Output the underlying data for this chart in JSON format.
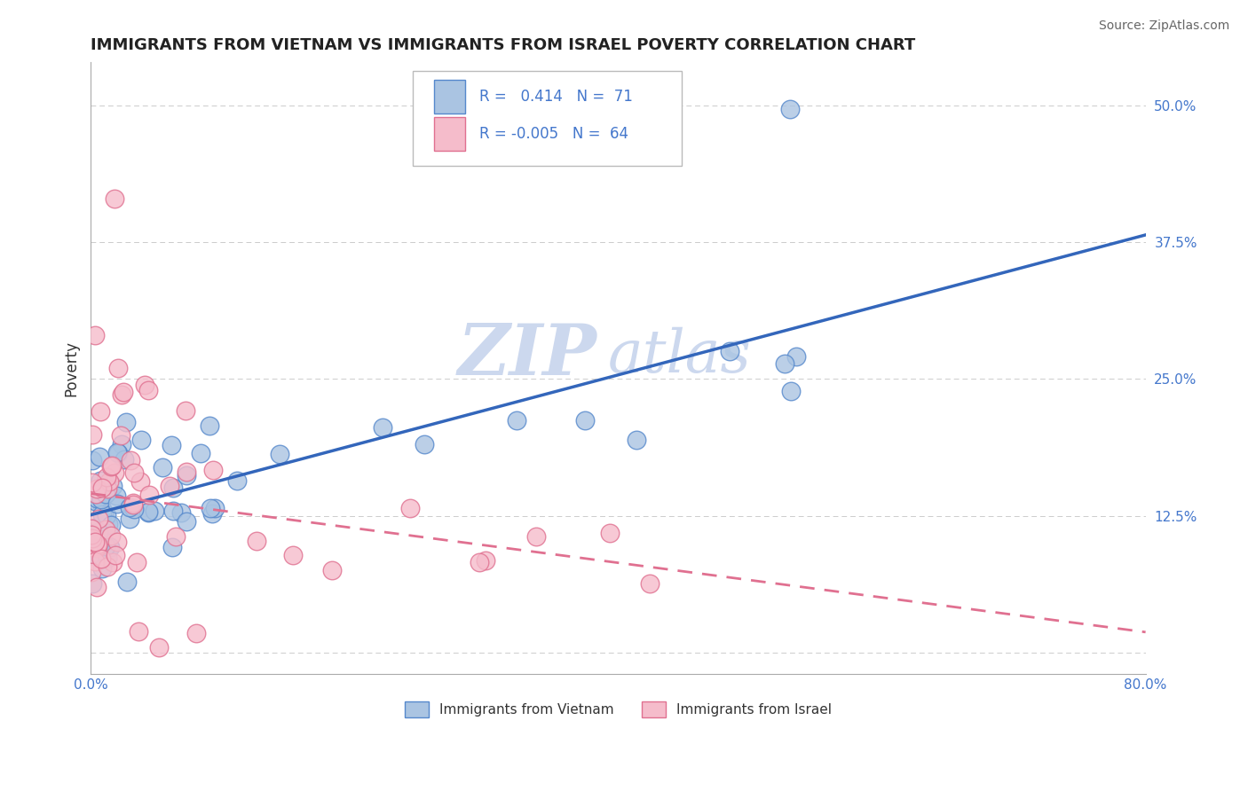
{
  "title": "IMMIGRANTS FROM VIETNAM VS IMMIGRANTS FROM ISRAEL POVERTY CORRELATION CHART",
  "source": "Source: ZipAtlas.com",
  "ylabel": "Poverty",
  "xlim": [
    0.0,
    0.8
  ],
  "ylim": [
    -0.02,
    0.54
  ],
  "yticks": [
    0.0,
    0.125,
    0.25,
    0.375,
    0.5
  ],
  "grid_color": "#cccccc",
  "background_color": "#ffffff",
  "vietnam_color": "#aac4e2",
  "vietnam_edge_color": "#5588cc",
  "israel_color": "#f5bccb",
  "israel_edge_color": "#e07090",
  "vietnam_R": 0.414,
  "vietnam_N": 71,
  "israel_R": -0.005,
  "israel_N": 64,
  "legend_label_vietnam": "Immigrants from Vietnam",
  "legend_label_israel": "Immigrants from Israel",
  "vietnam_line_color": "#3366bb",
  "israel_line_color": "#e07090",
  "text_color": "#4477cc",
  "watermark_color": "#ccd8ee",
  "title_color": "#222222"
}
